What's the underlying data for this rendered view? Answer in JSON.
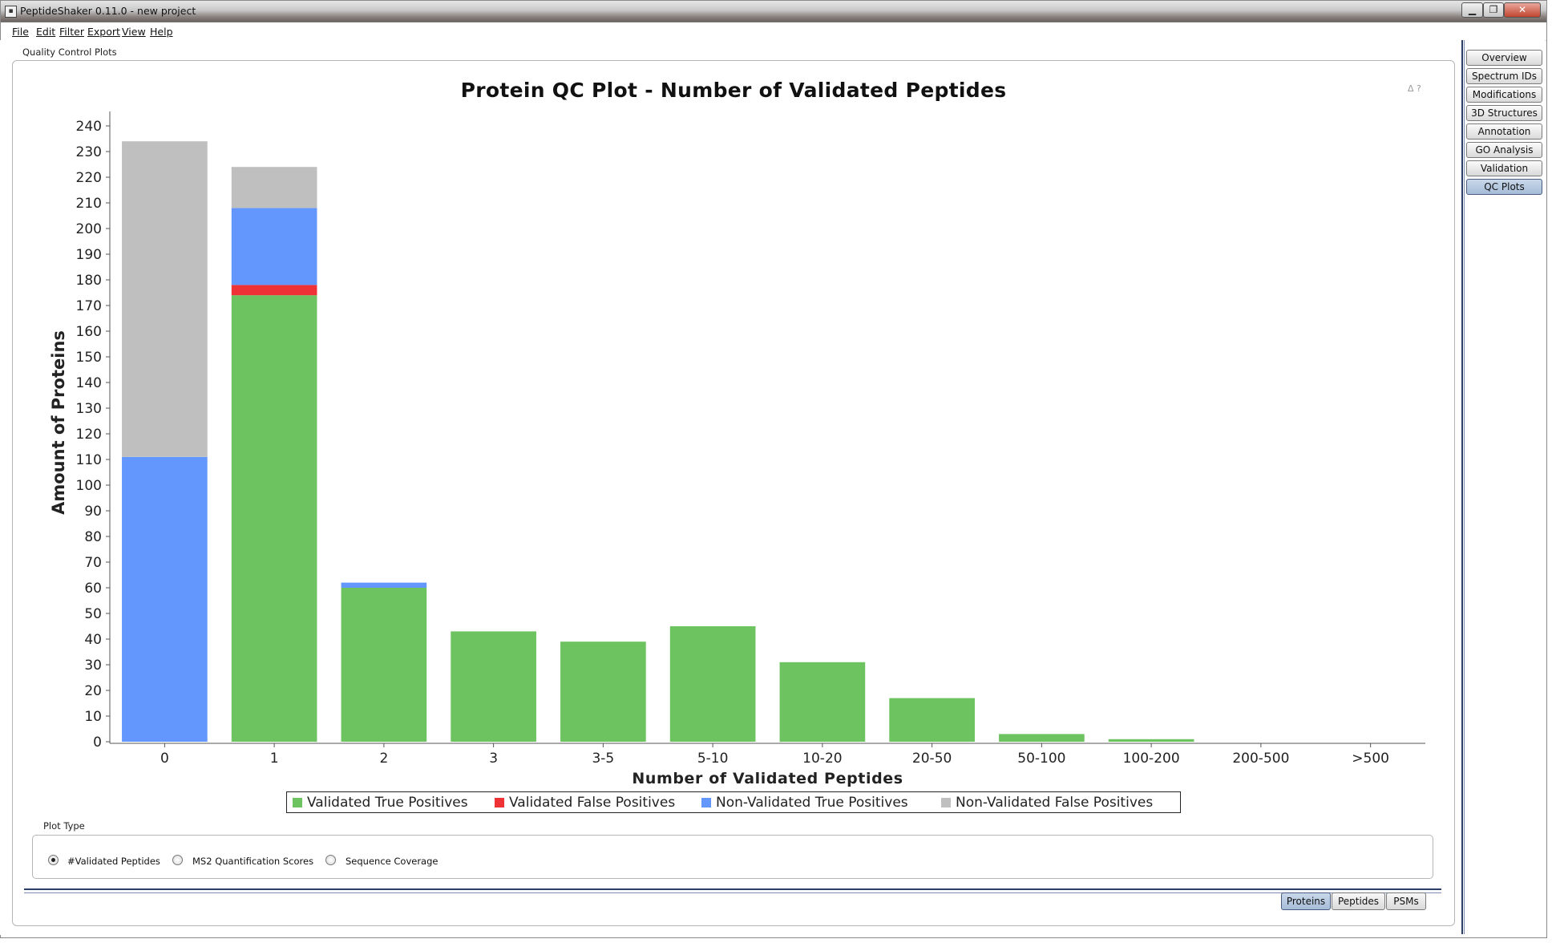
{
  "window": {
    "title": "PeptideShaker 0.11.0 - new project"
  },
  "menu": [
    "File",
    "Edit",
    "Filter",
    "Export",
    "View",
    "Help"
  ],
  "panel": {
    "title": "Quality Control Plots",
    "help_icons": "ᐃ ?"
  },
  "side_tabs": [
    {
      "label": "Overview"
    },
    {
      "label": "Spectrum IDs"
    },
    {
      "label": "Modifications"
    },
    {
      "label": "3D Structures"
    },
    {
      "label": "Annotation"
    },
    {
      "label": "GO Analysis"
    },
    {
      "label": "Validation"
    },
    {
      "label": "QC Plots",
      "selected": true
    }
  ],
  "plot_type": {
    "label": "Plot Type",
    "options": [
      {
        "label": "#Validated Peptides",
        "selected": true
      },
      {
        "label": "MS2 Quantification Scores",
        "selected": false
      },
      {
        "label": "Sequence Coverage",
        "selected": false
      }
    ]
  },
  "bottom_tabs": [
    {
      "label": "Proteins",
      "selected": true
    },
    {
      "label": "Peptides",
      "selected": false
    },
    {
      "label": "PSMs",
      "selected": false
    }
  ],
  "chart_data": {
    "type": "bar",
    "stacked": true,
    "title": "Protein QC Plot - Number of Validated Peptides",
    "xlabel": "Number of Validated Peptides",
    "ylabel": "Amount of Proteins",
    "ylim": [
      0,
      240
    ],
    "y_ticks": [
      0,
      10,
      20,
      30,
      40,
      50,
      60,
      70,
      80,
      90,
      100,
      110,
      120,
      130,
      140,
      150,
      160,
      170,
      180,
      190,
      200,
      210,
      220,
      230,
      240
    ],
    "categories": [
      "0",
      "1",
      "2",
      "3",
      "3-5",
      "5-10",
      "10-20",
      "20-50",
      "50-100",
      "100-200",
      "200-500",
      ">500"
    ],
    "series": [
      {
        "name": "Validated True Positives",
        "color": "#6cc35f",
        "values": [
          0,
          174,
          60,
          43,
          39,
          45,
          31,
          17,
          3,
          1,
          0,
          0
        ]
      },
      {
        "name": "Validated False Positives",
        "color": "#ef3236",
        "values": [
          0,
          4,
          0,
          0,
          0,
          0,
          0,
          0,
          0,
          0,
          0,
          0
        ]
      },
      {
        "name": "Non-Validated True Positives",
        "color": "#6497fd",
        "values": [
          111,
          30,
          2,
          0,
          0,
          0,
          0,
          0,
          0,
          0,
          0,
          0
        ]
      },
      {
        "name": "Non-Validated False Positives",
        "color": "#bfbfbf",
        "values": [
          123,
          16,
          0,
          0,
          0,
          0,
          0,
          0,
          0,
          0,
          0,
          0
        ]
      }
    ],
    "legend": "bottom",
    "grid": false
  }
}
